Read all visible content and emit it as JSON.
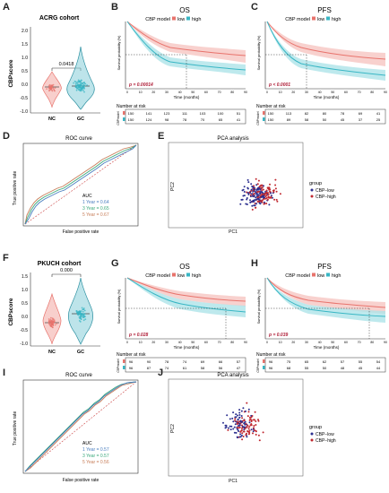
{
  "panels": {
    "A": {
      "letter": "A",
      "title": "ACRG cohort",
      "ylabel": "CBPscore",
      "groups": [
        "NC",
        "GC"
      ],
      "pvalue": "0.0418",
      "yticks": [
        "2.0",
        "1.5",
        "1.0",
        "0.5",
        "0.0",
        "-0.5",
        "-1.0"
      ]
    },
    "B": {
      "letter": "B",
      "title": "OS",
      "model_label": "CBP model",
      "legend": [
        "low",
        "high"
      ],
      "pvalue": "p = 0.00014",
      "ylabel": "Survival probability (%)",
      "xlabel": "Time (months)",
      "risk_title": "Number at risk",
      "risk_side_label": "CBPmodel",
      "xticks": [
        "0",
        "10",
        "20",
        "30",
        "40",
        "50",
        "60",
        "70",
        "80",
        "90"
      ],
      "risk_low": [
        "150",
        "141",
        "123",
        "111",
        "103",
        "100",
        "51"
      ],
      "risk_high": [
        "150",
        "124",
        "98",
        "78",
        "70",
        "65",
        "41"
      ]
    },
    "C": {
      "letter": "C",
      "title": "PFS",
      "model_label": "CBP model",
      "legend": [
        "low",
        "high"
      ],
      "pvalue": "p < 0.0001",
      "ylabel": "Survival probability (%)",
      "xlabel": "Time (months)",
      "risk_title": "Number at risk",
      "risk_side_label": "CBPmodel",
      "xticks": [
        "0",
        "10",
        "20",
        "30",
        "40",
        "50",
        "60",
        "70",
        "80",
        "90"
      ],
      "risk_low": [
        "150",
        "113",
        "82",
        "80",
        "78",
        "69",
        "41"
      ],
      "risk_high": [
        "150",
        "89",
        "58",
        "50",
        "45",
        "37",
        "25"
      ]
    },
    "D": {
      "letter": "D",
      "title": "ROC curve",
      "xlabel": "False positive rate",
      "ylabel": "True positive rate",
      "legend_title": "AUC",
      "legend": [
        "1 Year = 0.64",
        "3 Year = 0.65",
        "5 Year = 0.67"
      ]
    },
    "E": {
      "letter": "E",
      "title": "PCA analysis",
      "xlabel": "PC1",
      "ylabel": "PC2",
      "legend_title": "group",
      "legend": [
        "CBP−low",
        "CBP−high"
      ]
    },
    "F": {
      "letter": "F",
      "title": "PKUCH cohort",
      "ylabel": "CBPscore",
      "groups": [
        "NC",
        "GC"
      ],
      "pvalue": "0.000",
      "yticks": [
        "1.5",
        "1.0",
        "0.5",
        "0.0",
        "-0.5",
        "-1.0"
      ]
    },
    "G": {
      "letter": "G",
      "title": "OS",
      "model_label": "CBP model",
      "legend": [
        "low",
        "high"
      ],
      "pvalue": "p = 0.028",
      "ylabel": "Survival probability (%)",
      "xlabel": "Time (months)",
      "risk_title": "Number at risk",
      "risk_side_label": "CBPmodel",
      "xticks": [
        "0",
        "10",
        "20",
        "30",
        "40",
        "50",
        "60",
        "70",
        "80",
        "90"
      ],
      "risk_low": [
        "96",
        "90",
        "78",
        "74",
        "69",
        "66",
        "57"
      ],
      "risk_high": [
        "96",
        "87",
        "74",
        "61",
        "58",
        "56",
        "47"
      ]
    },
    "H": {
      "letter": "H",
      "title": "PFS",
      "model_label": "CBP model",
      "legend": [
        "low",
        "high"
      ],
      "pvalue": "p = 0.039",
      "ylabel": "Survival probability (%)",
      "xlabel": "Time (months)",
      "risk_title": "Number at risk",
      "risk_side_label": "CBPmodel",
      "xticks": [
        "0",
        "10",
        "20",
        "30",
        "40",
        "50",
        "60",
        "70",
        "80",
        "90"
      ],
      "risk_low": [
        "96",
        "75",
        "65",
        "62",
        "57",
        "55",
        "54"
      ],
      "risk_high": [
        "96",
        "68",
        "55",
        "50",
        "48",
        "45",
        "44"
      ]
    },
    "I": {
      "letter": "I",
      "title": "ROC curve",
      "xlabel": "False positive rate",
      "ylabel": "True positive rate",
      "legend_title": "AUC",
      "legend": [
        "1 Year = 0.57",
        "3 Year = 0.57",
        "5 Year = 0.56"
      ]
    },
    "J": {
      "letter": "J",
      "title": "PCA analysis",
      "xlabel": "PC1",
      "ylabel": "PC2",
      "legend_title": "group",
      "legend": [
        "CBP−low",
        "CBP−high"
      ]
    }
  },
  "colors": {
    "low": "#e8736c",
    "high": "#38b6c4",
    "low_band": "#f6c6c2",
    "high_band": "#aee3e8",
    "roc1": "#4a7ebf",
    "roc3": "#3aa87a",
    "roc5": "#c77d58",
    "pca_low": "#2c2f8f",
    "pca_high": "#c0282f",
    "pvalue_text": "#b0203a"
  },
  "chart_data": [
    {
      "type": "violin",
      "panel": "A",
      "categories": [
        "NC",
        "GC"
      ],
      "medians": [
        0.0,
        0.05
      ],
      "ylim": [
        -1.0,
        2.0
      ]
    },
    {
      "type": "line",
      "panel": "B",
      "x_range": [
        0,
        90
      ],
      "series": [
        {
          "name": "low",
          "x": [
            0,
            5,
            10,
            20,
            30,
            40,
            50,
            60,
            70,
            80,
            90
          ],
          "y": [
            1.0,
            0.95,
            0.87,
            0.78,
            0.72,
            0.69,
            0.67,
            0.66,
            0.65,
            0.64,
            0.63
          ]
        },
        {
          "name": "high",
          "x": [
            0,
            5,
            10,
            20,
            30,
            40,
            50,
            60,
            70,
            80,
            90
          ],
          "y": [
            1.0,
            0.88,
            0.75,
            0.6,
            0.51,
            0.47,
            0.45,
            0.43,
            0.42,
            0.41,
            0.4
          ]
        }
      ]
    },
    {
      "type": "line",
      "panel": "C",
      "x_range": [
        0,
        90
      ],
      "series": [
        {
          "name": "low",
          "x": [
            0,
            5,
            10,
            20,
            30,
            40,
            50,
            60,
            70,
            80,
            90
          ],
          "y": [
            1.0,
            0.9,
            0.8,
            0.7,
            0.65,
            0.62,
            0.6,
            0.58,
            0.57,
            0.56,
            0.55
          ]
        },
        {
          "name": "high",
          "x": [
            0,
            5,
            10,
            20,
            30,
            40,
            50,
            60,
            70,
            80,
            90
          ],
          "y": [
            1.0,
            0.78,
            0.62,
            0.47,
            0.4,
            0.37,
            0.35,
            0.33,
            0.32,
            0.31,
            0.3
          ]
        }
      ]
    },
    {
      "type": "line",
      "panel": "D",
      "xlim": [
        0,
        1
      ],
      "ylim": [
        0,
        1
      ],
      "series": [
        {
          "name": "1 Year = 0.64",
          "x": [
            0,
            0.05,
            0.1,
            0.2,
            0.3,
            0.4,
            0.5,
            0.6,
            0.7,
            0.8,
            0.9,
            1.0
          ],
          "y": [
            0,
            0.18,
            0.28,
            0.38,
            0.45,
            0.52,
            0.6,
            0.7,
            0.8,
            0.88,
            0.95,
            1.0
          ]
        },
        {
          "name": "3 Year = 0.65",
          "x": [
            0,
            0.05,
            0.1,
            0.2,
            0.3,
            0.4,
            0.5,
            0.6,
            0.7,
            0.8,
            0.9,
            1.0
          ],
          "y": [
            0,
            0.2,
            0.3,
            0.4,
            0.47,
            0.55,
            0.62,
            0.72,
            0.82,
            0.9,
            0.96,
            1.0
          ]
        },
        {
          "name": "5 Year = 0.67",
          "x": [
            0,
            0.05,
            0.1,
            0.2,
            0.3,
            0.4,
            0.5,
            0.6,
            0.7,
            0.8,
            0.9,
            1.0
          ],
          "y": [
            0,
            0.22,
            0.33,
            0.43,
            0.5,
            0.57,
            0.65,
            0.74,
            0.84,
            0.91,
            0.97,
            1.0
          ]
        }
      ]
    },
    {
      "type": "scatter",
      "panel": "E",
      "series": [
        {
          "name": "CBP−low"
        },
        {
          "name": "CBP−high"
        }
      ]
    },
    {
      "type": "violin",
      "panel": "F",
      "categories": [
        "NC",
        "GC"
      ],
      "medians": [
        -0.1,
        0.2
      ],
      "ylim": [
        -1.0,
        1.5
      ]
    },
    {
      "type": "line",
      "panel": "G",
      "x_range": [
        0,
        90
      ],
      "series": [
        {
          "name": "low",
          "x": [
            0,
            10,
            20,
            30,
            40,
            50,
            60,
            70,
            80,
            90
          ],
          "y": [
            1.0,
            0.92,
            0.84,
            0.79,
            0.76,
            0.74,
            0.72,
            0.71,
            0.7,
            0.69
          ]
        },
        {
          "name": "high",
          "x": [
            0,
            10,
            20,
            30,
            40,
            50,
            60,
            70,
            80,
            90
          ],
          "y": [
            1.0,
            0.88,
            0.76,
            0.68,
            0.63,
            0.6,
            0.58,
            0.56,
            0.55,
            0.54
          ]
        }
      ]
    },
    {
      "type": "line",
      "panel": "H",
      "x_range": [
        0,
        90
      ],
      "series": [
        {
          "name": "low",
          "x": [
            0,
            10,
            20,
            30,
            40,
            50,
            60,
            70,
            80,
            90
          ],
          "y": [
            1.0,
            0.86,
            0.76,
            0.72,
            0.68,
            0.66,
            0.64,
            0.63,
            0.62,
            0.61
          ]
        },
        {
          "name": "high",
          "x": [
            0,
            10,
            20,
            30,
            40,
            50,
            60,
            70,
            80,
            90
          ],
          "y": [
            1.0,
            0.8,
            0.66,
            0.6,
            0.56,
            0.53,
            0.51,
            0.5,
            0.49,
            0.48
          ]
        }
      ]
    },
    {
      "type": "line",
      "panel": "I",
      "xlim": [
        0,
        1
      ],
      "ylim": [
        0,
        1
      ],
      "series": [
        {
          "name": "1 Year = 0.57",
          "x": [
            0,
            0.1,
            0.2,
            0.3,
            0.4,
            0.5,
            0.6,
            0.7,
            0.8,
            0.9,
            1.0
          ],
          "y": [
            0,
            0.12,
            0.24,
            0.36,
            0.46,
            0.56,
            0.66,
            0.76,
            0.85,
            0.93,
            1.0
          ]
        },
        {
          "name": "3 Year = 0.57",
          "x": [
            0,
            0.1,
            0.2,
            0.3,
            0.4,
            0.5,
            0.6,
            0.7,
            0.8,
            0.9,
            1.0
          ],
          "y": [
            0,
            0.14,
            0.26,
            0.37,
            0.47,
            0.57,
            0.67,
            0.77,
            0.86,
            0.94,
            1.0
          ]
        },
        {
          "name": "5 Year = 0.56",
          "x": [
            0,
            0.1,
            0.2,
            0.3,
            0.4,
            0.5,
            0.6,
            0.7,
            0.8,
            0.9,
            1.0
          ],
          "y": [
            0,
            0.11,
            0.22,
            0.34,
            0.44,
            0.54,
            0.64,
            0.74,
            0.84,
            0.92,
            1.0
          ]
        }
      ]
    },
    {
      "type": "scatter",
      "panel": "J",
      "series": [
        {
          "name": "CBP−low"
        },
        {
          "name": "CBP−high"
        }
      ]
    }
  ]
}
